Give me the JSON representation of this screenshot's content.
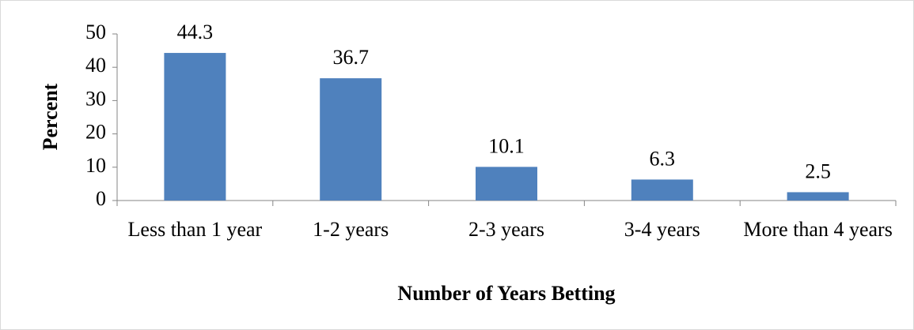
{
  "chart_data": {
    "type": "bar",
    "categories": [
      "Less than 1 year",
      "1-2 years",
      "2-3 years",
      "3-4 years",
      "More than 4 years"
    ],
    "values": [
      44.3,
      36.7,
      10.1,
      6.3,
      2.5
    ],
    "color": "#4f81bd",
    "xlabel": "Number of Years Betting",
    "ylabel": "Percent",
    "ylim": [
      0,
      50
    ],
    "yticks": [
      0,
      10,
      20,
      30,
      40,
      50
    ]
  }
}
